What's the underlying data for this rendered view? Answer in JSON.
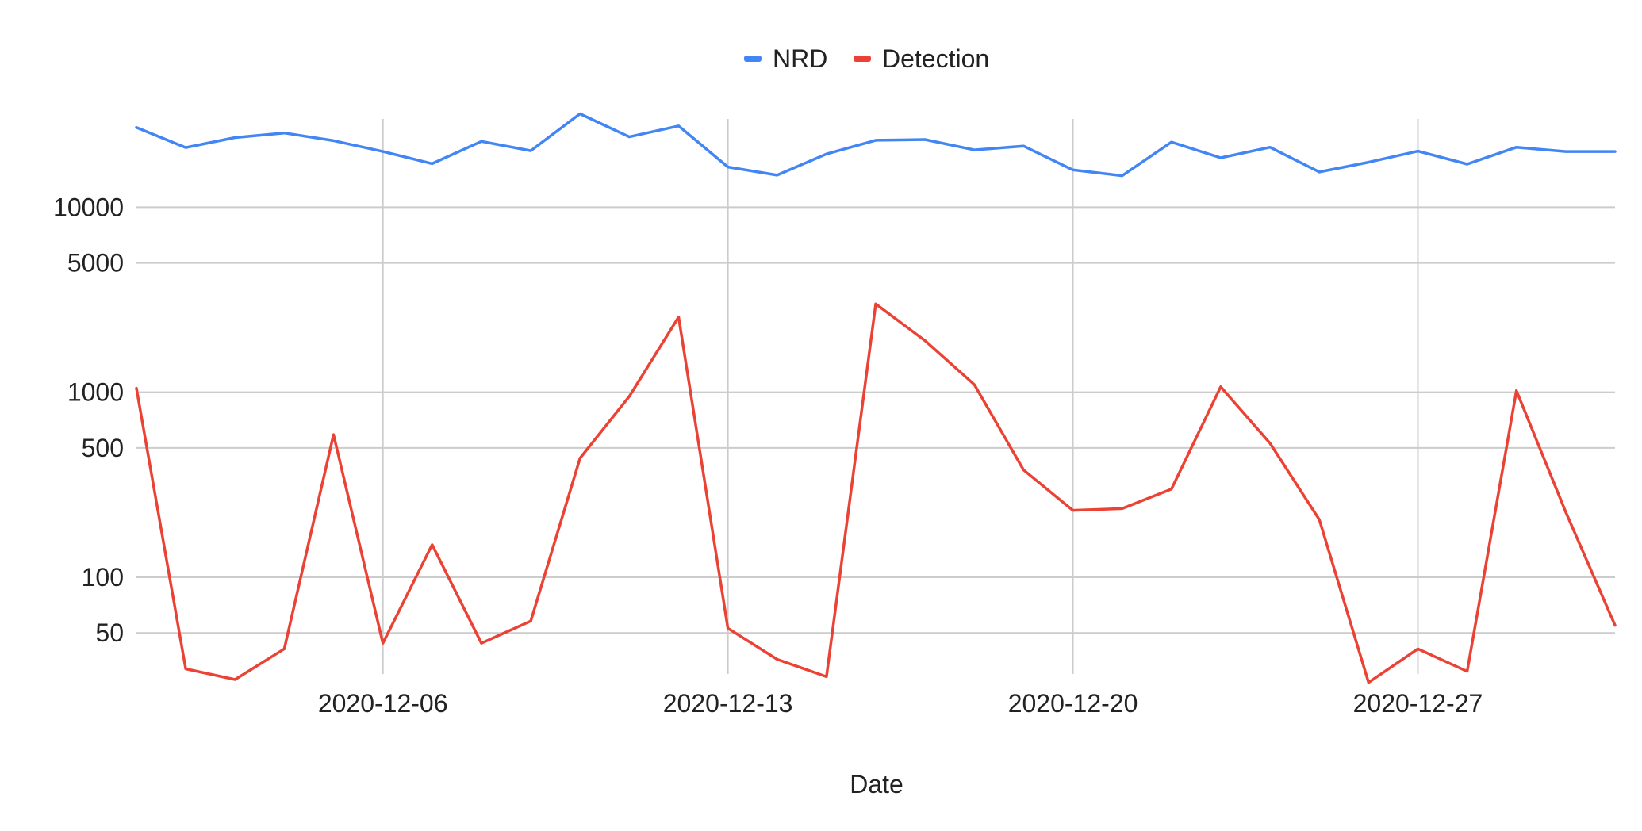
{
  "chart_data": {
    "type": "line",
    "title": "",
    "xlabel": "Date",
    "ylabel": "",
    "y_scale": "log",
    "ylim": [
      30,
      30000
    ],
    "xlim": [
      "2020-12-01",
      "2020-12-31"
    ],
    "grid": true,
    "legend_position": "top-center",
    "x": [
      "2020-12-01",
      "2020-12-02",
      "2020-12-03",
      "2020-12-04",
      "2020-12-05",
      "2020-12-06",
      "2020-12-07",
      "2020-12-08",
      "2020-12-09",
      "2020-12-10",
      "2020-12-11",
      "2020-12-12",
      "2020-12-13",
      "2020-12-14",
      "2020-12-15",
      "2020-12-16",
      "2020-12-17",
      "2020-12-18",
      "2020-12-19",
      "2020-12-20",
      "2020-12-21",
      "2020-12-22",
      "2020-12-23",
      "2020-12-24",
      "2020-12-25",
      "2020-12-26",
      "2020-12-27",
      "2020-12-28",
      "2020-12-29",
      "2020-12-30",
      "2020-12-31"
    ],
    "x_ticks": [
      {
        "date": "2020-12-06",
        "label": "2020-12-06"
      },
      {
        "date": "2020-12-13",
        "label": "2020-12-13"
      },
      {
        "date": "2020-12-20",
        "label": "2020-12-20"
      },
      {
        "date": "2020-12-27",
        "label": "2020-12-27"
      }
    ],
    "y_ticks": [
      {
        "value": 50,
        "label": "50"
      },
      {
        "value": 100,
        "label": "100"
      },
      {
        "value": 500,
        "label": "500"
      },
      {
        "value": 1000,
        "label": "1000"
      },
      {
        "value": 5000,
        "label": "5000"
      },
      {
        "value": 10000,
        "label": "10000"
      }
    ],
    "series": [
      {
        "name": "NRD",
        "color": "#4285F4",
        "values": [
          27000,
          21000,
          23800,
          25200,
          22900,
          20000,
          17200,
          22700,
          20200,
          32000,
          24000,
          27500,
          16500,
          14900,
          19400,
          23000,
          23200,
          20400,
          21400,
          15900,
          14800,
          22500,
          18500,
          21100,
          15500,
          17500,
          20100,
          17100,
          21100,
          20000,
          20000
        ]
      },
      {
        "name": "Detection",
        "color": "#EA4335",
        "values": [
          1050,
          32,
          28,
          41,
          590,
          44,
          150,
          44,
          58,
          440,
          950,
          2550,
          53,
          36,
          29,
          3000,
          1900,
          1100,
          380,
          230,
          235,
          300,
          1070,
          530,
          205,
          27,
          41,
          31,
          1020,
          225,
          55
        ]
      }
    ]
  }
}
